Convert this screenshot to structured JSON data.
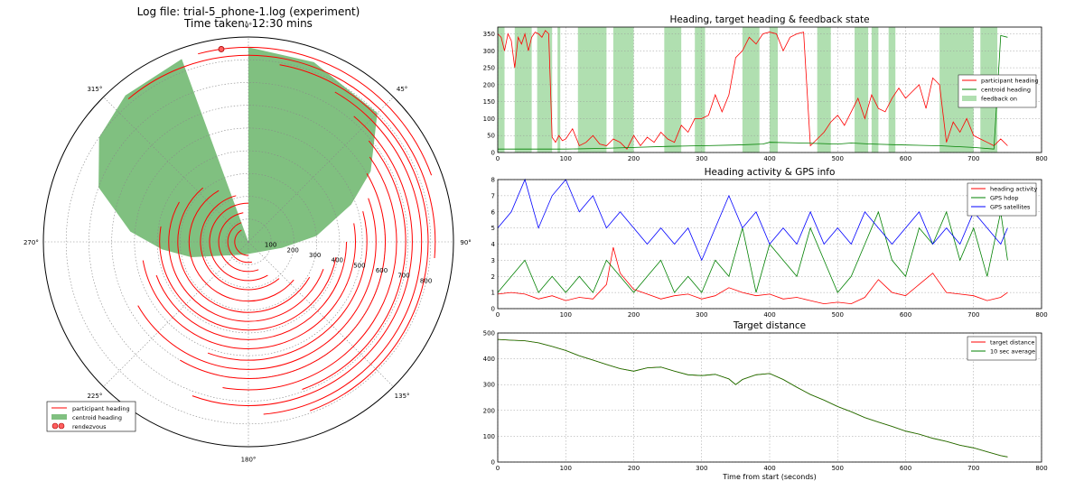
{
  "header": {
    "line1": "Log file: trial-5_phone-1.log (experiment)",
    "line2": "Time taken: 12:30 mins"
  },
  "chart_data": [
    {
      "type": "polar",
      "angle_labels": [
        "0°",
        "45°",
        "90°",
        "135°",
        "180°",
        "225°",
        "270°",
        "315°"
      ],
      "radial_ticks": [
        100,
        200,
        300,
        400,
        500,
        600,
        700,
        800
      ],
      "rmax": 900,
      "legend": [
        "participant heading",
        "centroid heading",
        "rendezvous"
      ],
      "legend_position": "lower-left",
      "colors": {
        "participant": "#ff0000",
        "centroid": "#80c080",
        "rendezvous": "#ff6060"
      },
      "grid": true,
      "rendezvous_point": {
        "angle_deg": 352,
        "distance": 855
      },
      "centroid_envelope": [
        {
          "angle_deg": 0,
          "distance": 855
        },
        {
          "angle_deg": 20,
          "distance": 840
        },
        {
          "angle_deg": 45,
          "distance": 800
        },
        {
          "angle_deg": 60,
          "distance": 620
        },
        {
          "angle_deg": 70,
          "distance": 480
        },
        {
          "angle_deg": 85,
          "distance": 300
        },
        {
          "angle_deg": 100,
          "distance": 150
        },
        {
          "angle_deg": 140,
          "distance": 60
        },
        {
          "angle_deg": 200,
          "distance": 60
        },
        {
          "angle_deg": 240,
          "distance": 120
        },
        {
          "angle_deg": 255,
          "distance": 260
        },
        {
          "angle_deg": 265,
          "distance": 380
        },
        {
          "angle_deg": 275,
          "distance": 520
        },
        {
          "angle_deg": 290,
          "distance": 700
        },
        {
          "angle_deg": 305,
          "distance": 800
        },
        {
          "angle_deg": 320,
          "distance": 840
        },
        {
          "angle_deg": 340,
          "distance": 855
        }
      ],
      "participant_arcs": [
        {
          "distance": 855,
          "from_deg": 345,
          "to_deg": 70
        },
        {
          "distance": 820,
          "from_deg": 320,
          "to_deg": 95
        },
        {
          "distance": 790,
          "from_deg": 10,
          "to_deg": 160
        },
        {
          "distance": 760,
          "from_deg": 30,
          "to_deg": 175
        },
        {
          "distance": 720,
          "from_deg": 40,
          "to_deg": 200
        },
        {
          "distance": 690,
          "from_deg": 50,
          "to_deg": 160
        },
        {
          "distance": 650,
          "from_deg": 55,
          "to_deg": 190
        },
        {
          "distance": 600,
          "from_deg": 60,
          "to_deg": 210
        },
        {
          "distance": 560,
          "from_deg": 70,
          "to_deg": 240
        },
        {
          "distance": 520,
          "from_deg": 75,
          "to_deg": 200
        },
        {
          "distance": 470,
          "from_deg": 80,
          "to_deg": 260
        },
        {
          "distance": 430,
          "from_deg": 90,
          "to_deg": 250
        },
        {
          "distance": 390,
          "from_deg": 100,
          "to_deg": 280
        },
        {
          "distance": 350,
          "from_deg": 110,
          "to_deg": 300
        },
        {
          "distance": 310,
          "from_deg": 120,
          "to_deg": 320
        },
        {
          "distance": 260,
          "from_deg": 130,
          "to_deg": 330
        },
        {
          "distance": 210,
          "from_deg": 140,
          "to_deg": 345
        },
        {
          "distance": 170,
          "from_deg": 150,
          "to_deg": 360
        },
        {
          "distance": 130,
          "from_deg": 160,
          "to_deg": 350
        },
        {
          "distance": 90,
          "from_deg": 170,
          "to_deg": 340
        },
        {
          "distance": 60,
          "from_deg": 180,
          "to_deg": 330
        }
      ]
    },
    {
      "type": "line",
      "title": "Heading, target heading & feedback state",
      "xlim": [
        0,
        800
      ],
      "ylim": [
        0,
        370
      ],
      "x_ticks": [
        0,
        100,
        200,
        300,
        400,
        500,
        600,
        700,
        800
      ],
      "y_ticks": [
        0,
        50,
        100,
        150,
        200,
        250,
        300,
        350
      ],
      "grid": true,
      "legend_position": "right",
      "series": [
        {
          "name": "participant heading",
          "color": "#ff0000",
          "x": [
            0,
            5,
            10,
            15,
            20,
            25,
            30,
            35,
            40,
            45,
            50,
            55,
            60,
            65,
            70,
            75,
            80,
            85,
            90,
            95,
            100,
            110,
            120,
            130,
            140,
            150,
            160,
            170,
            180,
            190,
            200,
            210,
            220,
            230,
            240,
            250,
            260,
            270,
            280,
            290,
            300,
            310,
            320,
            330,
            340,
            350,
            360,
            370,
            380,
            390,
            400,
            410,
            420,
            430,
            440,
            450,
            460,
            470,
            480,
            490,
            500,
            510,
            520,
            530,
            540,
            550,
            560,
            570,
            580,
            590,
            600,
            610,
            620,
            630,
            640,
            650,
            660,
            670,
            680,
            690,
            700,
            710,
            720,
            730,
            740,
            750
          ],
          "values": [
            350,
            340,
            300,
            350,
            330,
            250,
            340,
            320,
            350,
            300,
            340,
            355,
            350,
            340,
            360,
            350,
            45,
            30,
            50,
            35,
            40,
            70,
            20,
            30,
            50,
            25,
            20,
            40,
            30,
            10,
            50,
            20,
            45,
            30,
            60,
            40,
            30,
            80,
            60,
            100,
            100,
            110,
            170,
            120,
            170,
            280,
            300,
            340,
            320,
            350,
            355,
            350,
            300,
            340,
            350,
            355,
            20,
            40,
            60,
            90,
            110,
            80,
            120,
            160,
            100,
            170,
            130,
            120,
            160,
            190,
            160,
            180,
            200,
            130,
            220,
            200,
            30,
            90,
            60,
            100,
            50,
            40,
            30,
            20,
            40,
            20
          ]
        },
        {
          "name": "centroid heading",
          "color": "#008000",
          "x": [
            0,
            50,
            100,
            150,
            200,
            250,
            300,
            350,
            390,
            400,
            450,
            500,
            520,
            550,
            600,
            650,
            700,
            730,
            740,
            750
          ],
          "values": [
            10,
            10,
            10,
            12,
            15,
            18,
            20,
            22,
            25,
            30,
            28,
            25,
            28,
            25,
            22,
            20,
            15,
            10,
            345,
            340
          ]
        }
      ],
      "feedback_on": {
        "name": "feedback on",
        "color": "#b0dfb0",
        "intervals": [
          [
            0,
            10
          ],
          [
            25,
            50
          ],
          [
            58,
            80
          ],
          [
            88,
            92
          ],
          [
            118,
            160
          ],
          [
            170,
            200
          ],
          [
            245,
            270
          ],
          [
            290,
            305
          ],
          [
            360,
            385
          ],
          [
            400,
            412
          ],
          [
            470,
            490
          ],
          [
            525,
            545
          ],
          [
            550,
            560
          ],
          [
            575,
            585
          ],
          [
            650,
            700
          ],
          [
            710,
            735
          ]
        ]
      }
    },
    {
      "type": "line",
      "title": "Heading activity & GPS info",
      "xlim": [
        0,
        800
      ],
      "ylim": [
        0,
        8
      ],
      "x_ticks": [
        0,
        100,
        200,
        300,
        400,
        500,
        600,
        700,
        800
      ],
      "y_ticks": [
        0,
        1,
        2,
        3,
        4,
        5,
        6,
        7,
        8
      ],
      "grid": true,
      "legend_position": "top-right",
      "series": [
        {
          "name": "heading activity",
          "color": "#ff0000",
          "x": [
            0,
            20,
            40,
            60,
            80,
            100,
            120,
            140,
            160,
            170,
            180,
            200,
            220,
            240,
            260,
            280,
            300,
            320,
            340,
            360,
            380,
            400,
            420,
            440,
            460,
            480,
            500,
            520,
            540,
            560,
            580,
            600,
            620,
            640,
            660,
            680,
            700,
            720,
            740,
            750
          ],
          "values": [
            0.9,
            1.0,
            0.9,
            0.6,
            0.8,
            0.5,
            0.7,
            0.6,
            1.5,
            3.8,
            2.2,
            1.2,
            0.9,
            0.6,
            0.8,
            0.9,
            0.6,
            0.8,
            1.3,
            1.0,
            0.8,
            0.9,
            0.6,
            0.7,
            0.5,
            0.3,
            0.4,
            0.3,
            0.7,
            1.8,
            1.0,
            0.8,
            1.5,
            2.2,
            1.0,
            0.9,
            0.8,
            0.5,
            0.7,
            1.0
          ]
        },
        {
          "name": "GPS hdop",
          "color": "#008000",
          "x": [
            0,
            20,
            40,
            60,
            80,
            100,
            120,
            140,
            160,
            180,
            200,
            220,
            240,
            260,
            280,
            300,
            320,
            340,
            360,
            380,
            400,
            420,
            440,
            460,
            480,
            500,
            520,
            540,
            560,
            580,
            600,
            620,
            640,
            660,
            680,
            700,
            720,
            740,
            750
          ],
          "values": [
            1,
            2,
            3,
            1,
            2,
            1,
            2,
            1,
            3,
            2,
            1,
            2,
            3,
            1,
            2,
            1,
            3,
            2,
            5,
            1,
            4,
            3,
            2,
            5,
            3,
            1,
            2,
            4,
            6,
            3,
            2,
            5,
            4,
            6,
            3,
            5,
            2,
            6,
            3
          ]
        },
        {
          "name": "GPS satellites",
          "color": "#0000ff",
          "x": [
            0,
            20,
            40,
            60,
            80,
            100,
            120,
            140,
            160,
            180,
            200,
            220,
            240,
            260,
            280,
            300,
            320,
            340,
            360,
            380,
            400,
            420,
            440,
            460,
            480,
            500,
            520,
            540,
            560,
            580,
            600,
            620,
            640,
            660,
            680,
            700,
            720,
            740,
            750
          ],
          "values": [
            5,
            6,
            8,
            5,
            7,
            8,
            6,
            7,
            5,
            6,
            5,
            4,
            5,
            4,
            5,
            3,
            5,
            7,
            5,
            6,
            4,
            5,
            4,
            6,
            4,
            5,
            4,
            6,
            5,
            4,
            5,
            6,
            4,
            5,
            4,
            6,
            5,
            4,
            5
          ]
        }
      ]
    },
    {
      "type": "line",
      "title": "Target distance",
      "xlabel": "Time from start (seconds)",
      "xlim": [
        0,
        800
      ],
      "ylim": [
        0,
        500
      ],
      "x_ticks": [
        0,
        100,
        200,
        300,
        400,
        500,
        600,
        700,
        800
      ],
      "y_ticks": [
        0,
        100,
        200,
        300,
        400,
        500
      ],
      "grid": true,
      "legend_position": "top-right",
      "series": [
        {
          "name": "target distance",
          "color": "#ff0000",
          "x": [
            0,
            20,
            40,
            60,
            80,
            100,
            120,
            140,
            160,
            180,
            200,
            220,
            240,
            260,
            280,
            300,
            320,
            340,
            350,
            360,
            380,
            400,
            420,
            440,
            460,
            480,
            500,
            520,
            540,
            560,
            580,
            600,
            620,
            640,
            660,
            680,
            700,
            720,
            740,
            750
          ],
          "values": [
            475,
            472,
            470,
            462,
            448,
            432,
            412,
            395,
            378,
            362,
            352,
            365,
            368,
            352,
            338,
            335,
            340,
            322,
            300,
            320,
            338,
            343,
            320,
            290,
            262,
            240,
            215,
            195,
            172,
            155,
            138,
            120,
            108,
            92,
            80,
            65,
            55,
            40,
            25,
            20
          ]
        },
        {
          "name": "10 sec average",
          "color": "#008000",
          "x": [
            0,
            20,
            40,
            60,
            80,
            100,
            120,
            140,
            160,
            180,
            200,
            220,
            240,
            260,
            280,
            300,
            320,
            340,
            350,
            360,
            380,
            400,
            420,
            440,
            460,
            480,
            500,
            520,
            540,
            560,
            580,
            600,
            620,
            640,
            660,
            680,
            700,
            720,
            740,
            750
          ],
          "values": [
            475,
            472,
            470,
            462,
            448,
            432,
            412,
            395,
            378,
            362,
            352,
            365,
            368,
            352,
            338,
            335,
            340,
            322,
            300,
            320,
            338,
            343,
            320,
            290,
            262,
            240,
            215,
            195,
            172,
            155,
            138,
            120,
            108,
            92,
            80,
            65,
            55,
            40,
            25,
            20
          ]
        }
      ]
    }
  ]
}
